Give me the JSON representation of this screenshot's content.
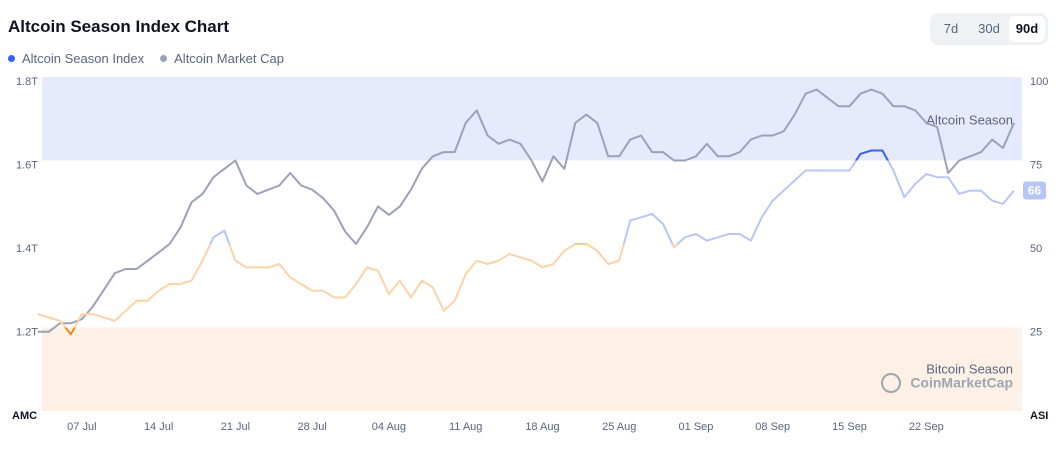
{
  "chart_data": {
    "type": "line",
    "title": "Altcoin Season Index Chart",
    "range_options": [
      "7d",
      "30d",
      "90d"
    ],
    "selected_range": "90d",
    "categories": [
      null,
      null,
      null,
      null,
      "07 Jul",
      null,
      null,
      null,
      null,
      null,
      null,
      "14 Jul",
      null,
      null,
      null,
      null,
      null,
      null,
      "21 Jul",
      null,
      null,
      null,
      null,
      null,
      null,
      "28 Jul",
      null,
      null,
      null,
      null,
      null,
      null,
      "04 Aug",
      null,
      null,
      null,
      null,
      null,
      null,
      "11 Aug",
      null,
      null,
      null,
      null,
      null,
      null,
      "18 Aug",
      null,
      null,
      null,
      null,
      null,
      null,
      "25 Aug",
      null,
      null,
      null,
      null,
      null,
      null,
      "01 Sep",
      null,
      null,
      null,
      null,
      null,
      null,
      "08 Sep",
      null,
      null,
      null,
      null,
      null,
      null,
      "15 Sep",
      null,
      null,
      null,
      null,
      null,
      null,
      "22 Sep",
      null,
      null,
      null,
      null,
      null,
      null,
      null,
      null
    ],
    "series": [
      {
        "name": "Altcoin Season Index",
        "color": "#3861fb",
        "axis": "y2",
        "zone_colors": [
          "#f0891c",
          "#fdd3a6",
          "#b8c6f7",
          "#3861fb"
        ],
        "values": [
          29,
          28,
          27,
          23,
          29,
          29,
          28,
          27,
          30,
          33,
          33,
          36,
          38,
          38,
          39,
          45,
          52,
          54,
          45,
          43,
          43,
          43,
          44,
          40,
          38,
          36,
          36,
          34,
          34,
          38,
          43,
          42,
          35,
          39,
          34,
          39,
          37,
          30,
          33,
          41,
          45,
          44,
          45,
          47,
          46,
          45,
          43,
          44,
          48,
          50,
          50,
          48,
          44,
          45,
          57,
          58,
          59,
          56,
          49,
          52,
          53,
          51,
          52,
          53,
          53,
          51,
          58,
          63,
          66,
          69,
          72,
          72,
          72,
          72,
          72,
          77,
          78,
          78,
          72,
          64,
          68,
          71,
          70,
          70,
          65,
          66,
          66,
          63,
          62,
          66
        ]
      },
      {
        "name": "Altcoin Market Cap",
        "color": "#9aa2b6",
        "values": [
          1.19,
          1.19,
          1.21,
          1.21,
          1.22,
          1.25,
          1.29,
          1.33,
          1.34,
          1.34,
          1.36,
          1.38,
          1.4,
          1.44,
          1.5,
          1.52,
          1.56,
          1.58,
          1.6,
          1.54,
          1.52,
          1.53,
          1.54,
          1.57,
          1.54,
          1.53,
          1.51,
          1.48,
          1.43,
          1.4,
          1.44,
          1.49,
          1.47,
          1.49,
          1.53,
          1.58,
          1.61,
          1.62,
          1.62,
          1.69,
          1.72,
          1.66,
          1.64,
          1.65,
          1.64,
          1.6,
          1.55,
          1.61,
          1.58,
          1.69,
          1.71,
          1.69,
          1.61,
          1.61,
          1.65,
          1.66,
          1.62,
          1.62,
          1.6,
          1.6,
          1.61,
          1.64,
          1.61,
          1.61,
          1.62,
          1.65,
          1.66,
          1.66,
          1.67,
          1.71,
          1.76,
          1.77,
          1.75,
          1.73,
          1.73,
          1.76,
          1.77,
          1.76,
          1.73,
          1.73,
          1.72,
          1.69,
          1.68,
          1.57,
          1.6,
          1.61,
          1.62,
          1.65,
          1.63,
          1.69
        ]
      }
    ],
    "y_axis_label": "AMC",
    "y2_axis_label": "ASI",
    "ylim": [
      1.0,
      1.8
    ],
    "yticks": [
      {
        "value": 1.2,
        "label": "1.2T"
      },
      {
        "value": 1.4,
        "label": "1.4T"
      },
      {
        "value": 1.6,
        "label": "1.6T"
      },
      {
        "value": 1.8,
        "label": "1.8T"
      }
    ],
    "y2lim": [
      0,
      100
    ],
    "y2ticks": [
      25,
      50,
      75,
      100
    ],
    "bands": [
      {
        "label": "Altcoin Season",
        "from": 75,
        "to": 100,
        "color": "#e7eafd"
      },
      {
        "label": "Bitcoin Season",
        "from": 0,
        "to": 25,
        "color": "#fdf1e6"
      }
    ],
    "watermark": "CoinMarketCap",
    "grid": false
  }
}
